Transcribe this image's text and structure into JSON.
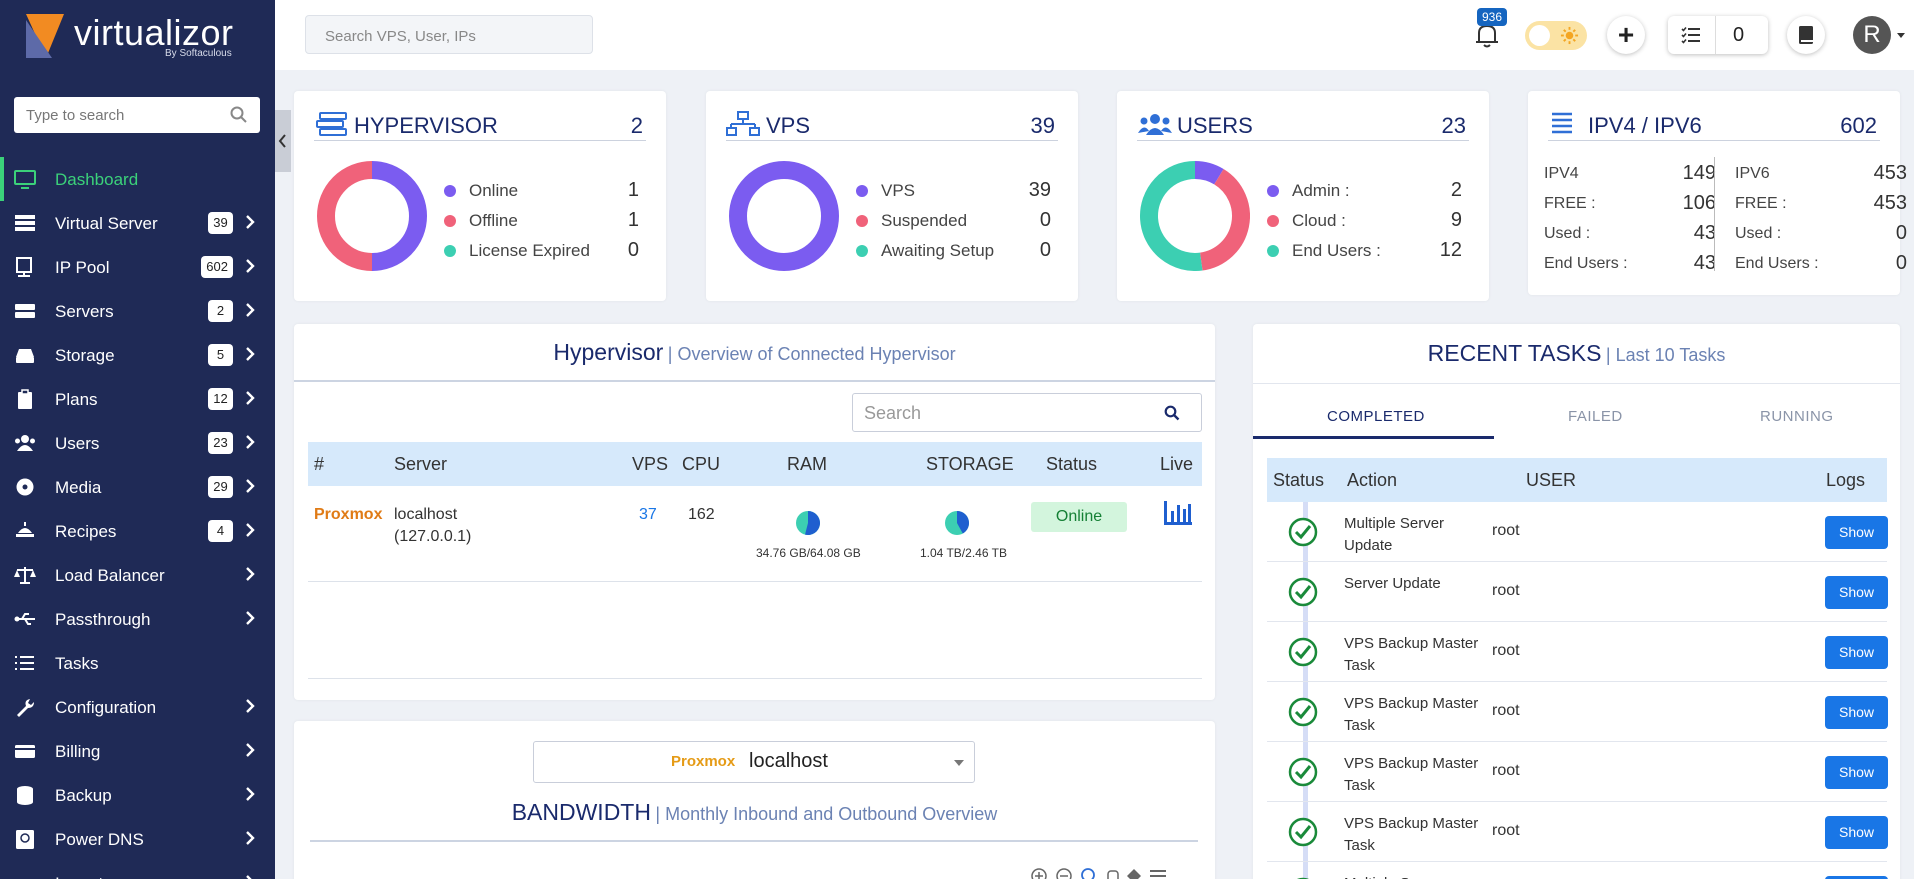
{
  "brand": {
    "name": "virtualizor",
    "sub": "By Softaculous"
  },
  "sidebar": {
    "search_placeholder": "Type to search",
    "items": [
      {
        "label": "Dashboard",
        "icon": "monitor-icon",
        "badge": "",
        "chevron": false,
        "active": true
      },
      {
        "label": "Virtual Server",
        "icon": "server-rack-icon",
        "badge": "39",
        "chevron": true
      },
      {
        "label": "IP Pool",
        "icon": "ip-icon",
        "badge": "602",
        "chevron": true
      },
      {
        "label": "Servers",
        "icon": "servers-icon",
        "badge": "2",
        "chevron": true
      },
      {
        "label": "Storage",
        "icon": "hdd-icon",
        "badge": "5",
        "chevron": true
      },
      {
        "label": "Plans",
        "icon": "clipboard-icon",
        "badge": "12",
        "chevron": true
      },
      {
        "label": "Users",
        "icon": "users-icon",
        "badge": "23",
        "chevron": true
      },
      {
        "label": "Media",
        "icon": "disc-icon",
        "badge": "29",
        "chevron": true
      },
      {
        "label": "Recipes",
        "icon": "chef-icon",
        "badge": "4",
        "chevron": true
      },
      {
        "label": "Load Balancer",
        "icon": "scale-icon",
        "badge": "",
        "chevron": true
      },
      {
        "label": "Passthrough",
        "icon": "usb-icon",
        "badge": "",
        "chevron": true
      },
      {
        "label": "Tasks",
        "icon": "list-icon",
        "badge": "",
        "chevron": false
      },
      {
        "label": "Configuration",
        "icon": "wrench-icon",
        "badge": "",
        "chevron": true
      },
      {
        "label": "Billing",
        "icon": "card-icon",
        "badge": "",
        "chevron": true
      },
      {
        "label": "Backup",
        "icon": "database-icon",
        "badge": "",
        "chevron": true
      },
      {
        "label": "Power DNS",
        "icon": "dns-icon",
        "badge": "",
        "chevron": true
      },
      {
        "label": "Import",
        "icon": "import-icon",
        "badge": "",
        "chevron": true
      }
    ]
  },
  "topbar": {
    "search_placeholder": "Search VPS, User, IPs",
    "notifications": "936",
    "tasks_count": "0",
    "avatar_letter": "R"
  },
  "stats": {
    "hypervisor": {
      "title": "HYPERVISOR",
      "count": "2",
      "legend": [
        {
          "label": "Online",
          "value": "1",
          "color": "#7b5cf0"
        },
        {
          "label": "Offline",
          "value": "1",
          "color": "#f0627a"
        },
        {
          "label": "License Expired",
          "value": "0",
          "color": "#3ccfb2"
        }
      ]
    },
    "vps": {
      "title": "VPS",
      "count": "39",
      "legend": [
        {
          "label": "VPS",
          "value": "39",
          "color": "#7b5cf0"
        },
        {
          "label": "Suspended",
          "value": "0",
          "color": "#f0627a"
        },
        {
          "label": "Awaiting Setup",
          "value": "0",
          "color": "#3ccfb2"
        }
      ]
    },
    "users": {
      "title": "USERS",
      "count": "23",
      "legend": [
        {
          "label": "Admin :",
          "value": "2",
          "color": "#7b5cf0"
        },
        {
          "label": "Cloud :",
          "value": "9",
          "color": "#f0627a"
        },
        {
          "label": "End Users :",
          "value": "12",
          "color": "#3ccfb2"
        }
      ]
    },
    "ip": {
      "title": "IPV4 / IPV6",
      "count": "602",
      "v4": [
        {
          "k": "IPV4",
          "v": "149"
        },
        {
          "k": "FREE :",
          "v": "106"
        },
        {
          "k": "Used :",
          "v": "43"
        },
        {
          "k": "End Users :",
          "v": "43"
        }
      ],
      "v6": [
        {
          "k": "IPV6",
          "v": "453"
        },
        {
          "k": "FREE :",
          "v": "453"
        },
        {
          "k": "Used :",
          "v": "0"
        },
        {
          "k": "End Users :",
          "v": "0"
        }
      ]
    }
  },
  "hypervisor_panel": {
    "title": "Hypervisor",
    "subtitle": "| Overview of Connected Hypervisor",
    "search_placeholder": "Search",
    "columns": [
      "#",
      "Server",
      "VPS",
      "CPU",
      "RAM",
      "STORAGE",
      "Status",
      "Live"
    ],
    "row": {
      "type": "Proxmox",
      "server": "localhost",
      "ip": "(127.0.0.1)",
      "vps": "37",
      "cpu": "162",
      "ram": "34.76 GB/64.08 GB",
      "storage": "1.04 TB/2.46 TB",
      "status": "Online",
      "ram_used_fraction": 0.54,
      "storage_used_fraction": 0.42
    }
  },
  "bandwidth_panel": {
    "select_tag": "Proxmox",
    "select_host": "localhost",
    "title": "BANDWIDTH",
    "subtitle": "| Monthly Inbound and Outbound Overview"
  },
  "recent_tasks": {
    "title": "RECENT TASKS",
    "subtitle": "| Last 10 Tasks",
    "tabs": [
      "COMPLETED",
      "FAILED",
      "RUNNING"
    ],
    "columns": [
      "Status",
      "Action",
      "USER",
      "Logs"
    ],
    "show_label": "Show",
    "rows": [
      {
        "action": "Multiple Server Update",
        "user": "root"
      },
      {
        "action": "Server Update",
        "user": "root"
      },
      {
        "action": "VPS Backup Master Task",
        "user": "root"
      },
      {
        "action": "VPS Backup Master Task",
        "user": "root"
      },
      {
        "action": "VPS Backup Master Task",
        "user": "root"
      },
      {
        "action": "VPS Backup Master Task",
        "user": "root"
      },
      {
        "action": "Multiple Server",
        "user": ""
      }
    ]
  }
}
